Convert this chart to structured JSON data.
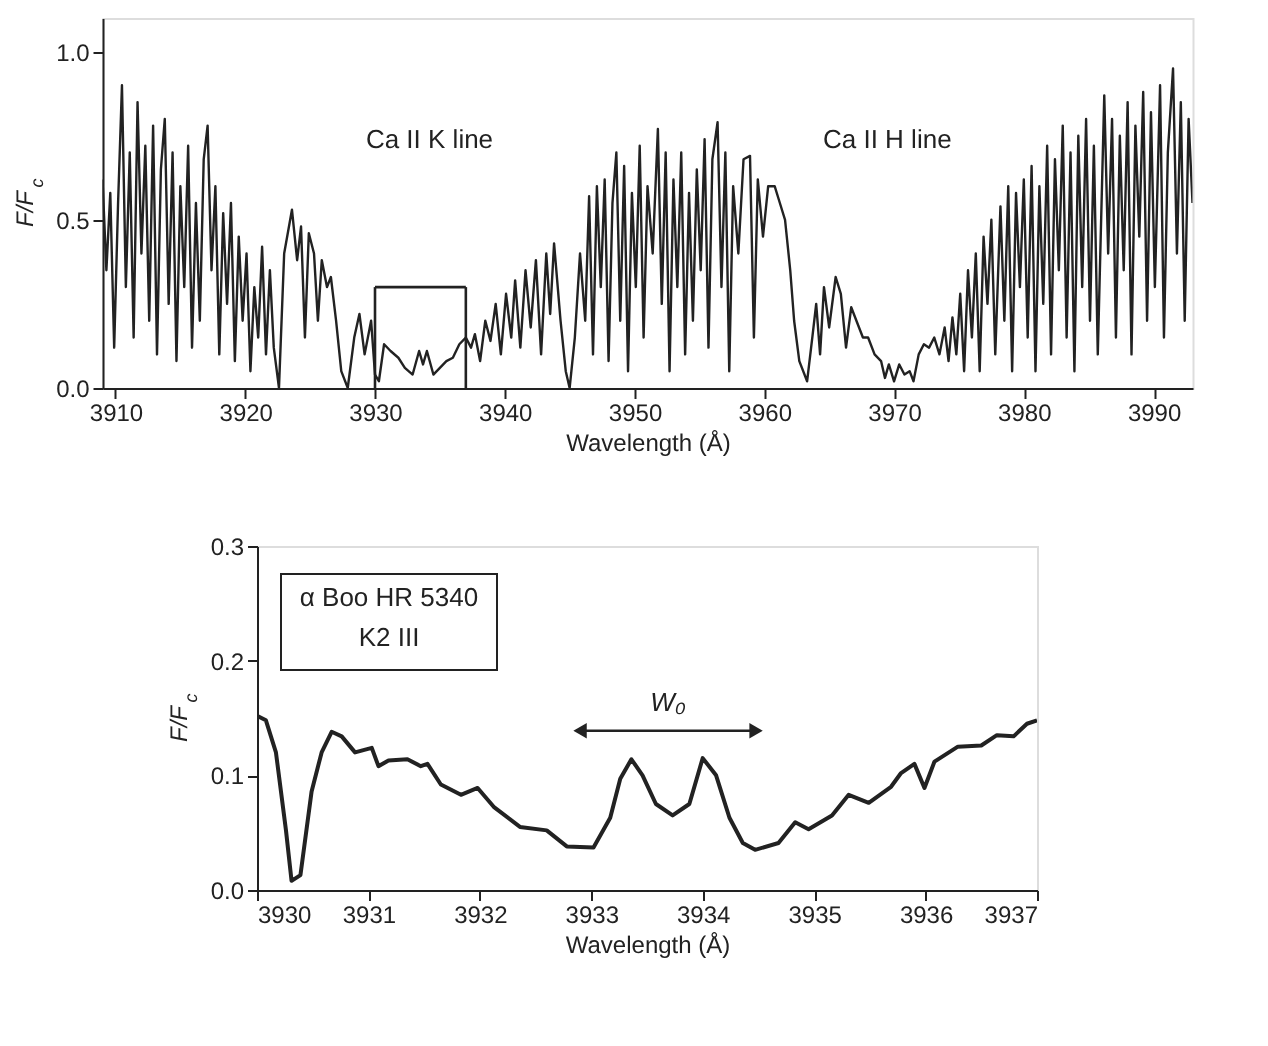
{
  "chart_data": [
    {
      "type": "line",
      "xlabel": "Wavelength (Å)",
      "ylabel": "F/F$_{c}$",
      "x": [
        3909.0,
        3909.3,
        3909.6,
        3909.9,
        3910.2,
        3910.5,
        3910.8,
        3911.1,
        3911.4,
        3911.7,
        3912.0,
        3912.3,
        3912.6,
        3912.9,
        3913.2,
        3913.5,
        3913.8,
        3914.1,
        3914.4,
        3914.7,
        3915.0,
        3915.3,
        3915.6,
        3915.9,
        3916.2,
        3916.5,
        3916.8,
        3917.1,
        3917.4,
        3917.7,
        3918.0,
        3918.3,
        3918.6,
        3918.9,
        3919.2,
        3919.5,
        3919.8,
        3920.1,
        3920.4,
        3920.7,
        3921.0,
        3921.3,
        3921.6,
        3921.9,
        3922.2,
        3922.6,
        3923.0,
        3923.6,
        3924.0,
        3924.3,
        3924.6,
        3924.9,
        3925.3,
        3925.6,
        3925.9,
        3926.3,
        3926.6,
        3927.0,
        3927.4,
        3927.9,
        3928.4,
        3928.8,
        3929.2,
        3929.7,
        3930.0,
        3930.3,
        3930.7,
        3931.2,
        3931.8,
        3932.3,
        3932.9,
        3933.4,
        3933.7,
        3934.0,
        3934.5,
        3935.0,
        3935.5,
        3936.0,
        3936.5,
        3937.0,
        3937.4,
        3937.7,
        3938.1,
        3938.5,
        3938.9,
        3939.3,
        3939.7,
        3940.1,
        3940.5,
        3940.8,
        3941.2,
        3941.6,
        3942.0,
        3942.4,
        3942.8,
        3943.2,
        3943.5,
        3943.8,
        3944.3,
        3944.7,
        3945.0,
        3945.4,
        3945.8,
        3946.2,
        3946.5,
        3946.8,
        3947.1,
        3947.4,
        3947.7,
        3948.0,
        3948.3,
        3948.6,
        3948.9,
        3949.2,
        3949.5,
        3949.8,
        3950.1,
        3950.4,
        3950.7,
        3951.0,
        3951.4,
        3951.8,
        3952.1,
        3952.4,
        3952.7,
        3953.0,
        3953.3,
        3953.6,
        3953.9,
        3954.2,
        3954.5,
        3954.8,
        3955.1,
        3955.4,
        3955.7,
        3956.0,
        3956.4,
        3956.7,
        3957.0,
        3957.3,
        3957.6,
        3958.0,
        3958.4,
        3958.9,
        3959.2,
        3959.5,
        3959.9,
        3960.3,
        3960.8,
        3961.2,
        3961.6,
        3962.0,
        3962.3,
        3962.7,
        3963.3,
        3963.7,
        3964.0,
        3964.3,
        3964.6,
        3965.0,
        3965.5,
        3965.9,
        3966.3,
        3966.7,
        3967.1,
        3967.6,
        3968.0,
        3968.5,
        3969.0,
        3969.3,
        3969.6,
        3970.0,
        3970.4,
        3970.8,
        3971.2,
        3971.5,
        3971.9,
        3972.3,
        3972.7,
        3973.1,
        3973.5,
        3973.9,
        3974.2,
        3974.5,
        3974.8,
        3975.1,
        3975.4,
        3975.7,
        3976.0,
        3976.3,
        3976.6,
        3976.9,
        3977.2,
        3977.5,
        3977.8,
        3978.2,
        3978.5,
        3978.8,
        3979.1,
        3979.4,
        3979.7,
        3980.0,
        3980.3,
        3980.6,
        3980.9,
        3981.2,
        3981.5,
        3981.8,
        3982.1,
        3982.4,
        3982.7,
        3983.0,
        3983.3,
        3983.6,
        3983.9,
        3984.2,
        3984.5,
        3984.8,
        3985.1,
        3985.4,
        3985.7,
        3986.2,
        3986.5,
        3986.8,
        3987.1,
        3987.4,
        3987.7,
        3988.0,
        3988.3,
        3988.6,
        3988.9,
        3989.2,
        3989.5,
        3989.8,
        3990.1,
        3990.5,
        3990.8,
        3991.1,
        3991.5,
        3991.8,
        3992.1,
        3992.4,
        3992.7,
        3993.0
      ],
      "series": [
        {
          "color": "#222222",
          "values": [
            0.62,
            0.35,
            0.58,
            0.12,
            0.55,
            0.9,
            0.3,
            0.7,
            0.15,
            0.85,
            0.4,
            0.72,
            0.2,
            0.78,
            0.1,
            0.65,
            0.8,
            0.25,
            0.7,
            0.08,
            0.6,
            0.3,
            0.72,
            0.12,
            0.55,
            0.2,
            0.68,
            0.78,
            0.35,
            0.6,
            0.1,
            0.52,
            0.25,
            0.55,
            0.08,
            0.45,
            0.2,
            0.4,
            0.05,
            0.3,
            0.15,
            0.42,
            0.1,
            0.35,
            0.12,
            0.0,
            0.4,
            0.53,
            0.38,
            0.48,
            0.15,
            0.46,
            0.4,
            0.2,
            0.38,
            0.3,
            0.33,
            0.2,
            0.05,
            0.0,
            0.15,
            0.22,
            0.1,
            0.2,
            0.04,
            0.02,
            0.13,
            0.11,
            0.09,
            0.06,
            0.04,
            0.11,
            0.07,
            0.11,
            0.04,
            0.06,
            0.08,
            0.09,
            0.13,
            0.15,
            0.12,
            0.16,
            0.08,
            0.2,
            0.14,
            0.25,
            0.1,
            0.28,
            0.15,
            0.32,
            0.12,
            0.35,
            0.18,
            0.38,
            0.1,
            0.4,
            0.22,
            0.43,
            0.2,
            0.05,
            0.0,
            0.15,
            0.4,
            0.2,
            0.57,
            0.1,
            0.6,
            0.3,
            0.62,
            0.08,
            0.55,
            0.7,
            0.2,
            0.66,
            0.05,
            0.58,
            0.3,
            0.72,
            0.15,
            0.6,
            0.4,
            0.77,
            0.25,
            0.7,
            0.05,
            0.62,
            0.3,
            0.7,
            0.1,
            0.58,
            0.2,
            0.65,
            0.35,
            0.74,
            0.12,
            0.68,
            0.79,
            0.3,
            0.7,
            0.05,
            0.6,
            0.4,
            0.68,
            0.69,
            0.15,
            0.62,
            0.45,
            0.6,
            0.6,
            0.55,
            0.5,
            0.35,
            0.2,
            0.08,
            0.02,
            0.15,
            0.25,
            0.1,
            0.3,
            0.18,
            0.33,
            0.28,
            0.12,
            0.24,
            0.2,
            0.15,
            0.15,
            0.1,
            0.08,
            0.03,
            0.07,
            0.02,
            0.07,
            0.04,
            0.05,
            0.02,
            0.1,
            0.13,
            0.12,
            0.15,
            0.1,
            0.18,
            0.08,
            0.21,
            0.1,
            0.28,
            0.05,
            0.35,
            0.15,
            0.4,
            0.05,
            0.45,
            0.25,
            0.5,
            0.1,
            0.54,
            0.2,
            0.6,
            0.05,
            0.58,
            0.3,
            0.62,
            0.15,
            0.66,
            0.05,
            0.6,
            0.25,
            0.72,
            0.1,
            0.68,
            0.35,
            0.78,
            0.15,
            0.7,
            0.05,
            0.75,
            0.3,
            0.8,
            0.2,
            0.72,
            0.1,
            0.87,
            0.4,
            0.8,
            0.15,
            0.75,
            0.35,
            0.85,
            0.1,
            0.78,
            0.45,
            0.88,
            0.2,
            0.82,
            0.3,
            0.9,
            0.15,
            0.7,
            0.95,
            0.4,
            0.85,
            0.2,
            0.8,
            0.55
          ]
        }
      ],
      "xlim": [
        3909,
        3993
      ],
      "xticks": [
        3910,
        3920,
        3930,
        3940,
        3950,
        3960,
        3970,
        3980,
        3990
      ],
      "ylim": [
        0,
        1.1
      ],
      "yticks": [
        {
          "value": 0,
          "label": "0.0"
        },
        {
          "value": 0.5,
          "label": "0.5"
        },
        {
          "value": 1.0,
          "label": "1.0"
        }
      ],
      "annotations": [
        "Ca II  K line",
        "Ca II  H line"
      ],
      "grid": false
    },
    {
      "type": "line",
      "xlabel": "Wavelength (Å)",
      "ylabel": "F/F$_{c}$",
      "x": [
        3930.0,
        3930.08,
        3930.17,
        3930.26,
        3930.31,
        3930.39,
        3930.49,
        3930.58,
        3930.67,
        3930.76,
        3930.88,
        3931.03,
        3931.09,
        3931.18,
        3931.35,
        3931.47,
        3931.53,
        3931.65,
        3931.83,
        3931.98,
        3932.13,
        3932.36,
        3932.6,
        3932.78,
        3933.02,
        3933.17,
        3933.26,
        3933.36,
        3933.46,
        3933.58,
        3933.73,
        3933.88,
        3934.0,
        3934.12,
        3934.24,
        3934.36,
        3934.47,
        3934.68,
        3934.83,
        3934.95,
        3935.16,
        3935.31,
        3935.49,
        3935.69,
        3935.78,
        3935.9,
        3935.99,
        3936.08,
        3936.29,
        3936.5,
        3936.64,
        3936.79,
        3936.91,
        3937.0
      ],
      "series": [
        {
          "color": "#222222",
          "values": [
            0.152,
            0.148,
            0.12,
            0.052,
            0.008,
            0.013,
            0.086,
            0.12,
            0.138,
            0.134,
            0.12,
            0.124,
            0.108,
            0.113,
            0.114,
            0.108,
            0.11,
            0.092,
            0.083,
            0.089,
            0.072,
            0.055,
            0.052,
            0.038,
            0.037,
            0.063,
            0.097,
            0.114,
            0.1,
            0.075,
            0.065,
            0.075,
            0.115,
            0.1,
            0.063,
            0.041,
            0.035,
            0.041,
            0.059,
            0.053,
            0.065,
            0.083,
            0.076,
            0.09,
            0.102,
            0.11,
            0.089,
            0.112,
            0.125,
            0.126,
            0.135,
            0.134,
            0.145,
            0.148
          ]
        }
      ],
      "xlim": [
        3930,
        3937
      ],
      "xticks": [
        3930,
        3931,
        3932,
        3933,
        3934,
        3935,
        3936,
        3937
      ],
      "ylim": [
        0,
        0.3
      ],
      "yticks": [
        {
          "value": 0,
          "label": "0.0"
        },
        {
          "value": 0.1,
          "label": "0.1"
        },
        {
          "value": 0.2,
          "label": "0.2"
        },
        {
          "value": 0.3,
          "label": "0.3"
        }
      ],
      "annotations": [
        "α Boo   HR 5340",
        "K2 III",
        "W₀"
      ],
      "grid": false
    }
  ]
}
